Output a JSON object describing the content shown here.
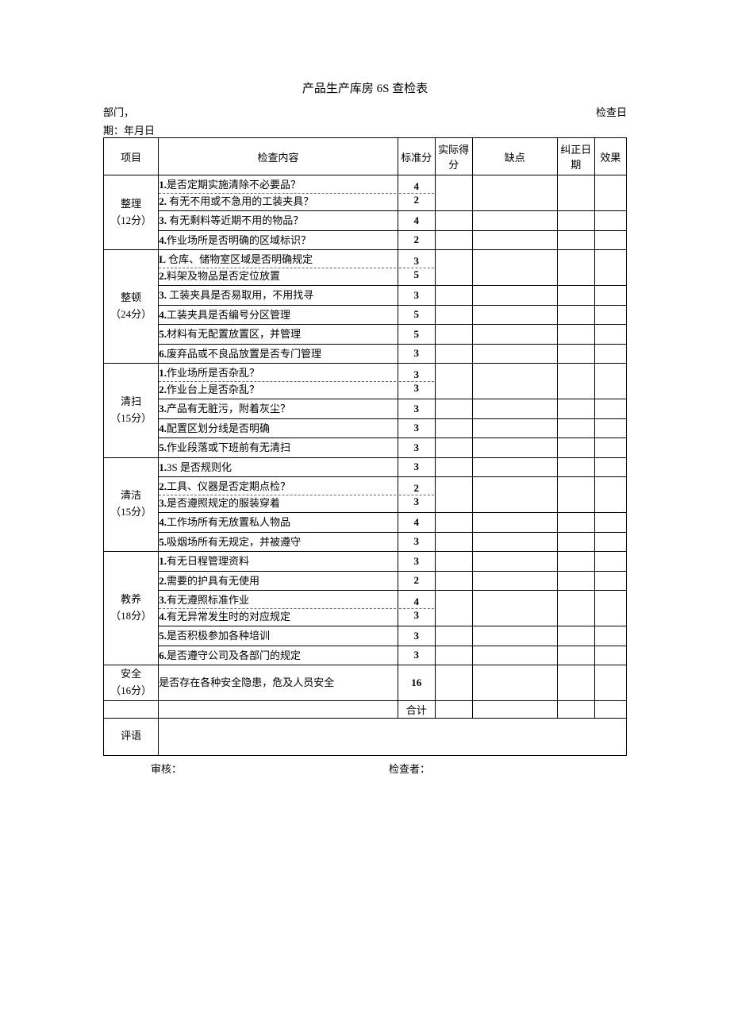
{
  "title": "产品生产库房 6S 查检表",
  "header_left": "部门，",
  "header_right": "检查日",
  "header_sub": "期：年月日",
  "columns": {
    "proj": "项目",
    "content": "检查内容",
    "std": "标准分",
    "actual": "实际得分",
    "defect": "缺点",
    "date": "纠正日期",
    "effect": "效果"
  },
  "sections": [
    {
      "name": "整理",
      "scoreLabel": "（12分）",
      "rows": [
        {
          "merged": [
            {
              "num": "1.",
              "text": "是否定期实施清除不必要品？",
              "score": "4"
            },
            {
              "num": "2.",
              "text": " 有无不用或不急用的工装夹具？",
              "score": "2"
            }
          ]
        },
        {
          "num": "3.",
          "text": " 有无剩料等近期不用的物品？",
          "score": "4"
        },
        {
          "num": "4.",
          "text": "作业场所是否明确的区域标识？",
          "score": "2"
        }
      ]
    },
    {
      "name": "整顿",
      "scoreLabel": "（24分）",
      "rows": [
        {
          "merged": [
            {
              "num": "L",
              "text": " 仓库、储物室区域是否明确规定",
              "score": "3"
            },
            {
              "num": "2.",
              "text": "料架及物品是否定位放置",
              "score": "5"
            }
          ]
        },
        {
          "num": "3.",
          "text": " 工装夹具是否易取用，不用找寻",
          "score": "3"
        },
        {
          "num": "4.",
          "text": "工装夹具是否编号分区管理",
          "score": "5"
        },
        {
          "num": "5.",
          "text": "材料有无配置放置区，并管理",
          "score": "5"
        },
        {
          "num": "6.",
          "text": "废弃品或不良品放置是否专门管理",
          "score": "3"
        }
      ]
    },
    {
      "name": "清扫",
      "scoreLabel": "（15分）",
      "rows": [
        {
          "merged": [
            {
              "num": "1.",
              "text": "作业场所是否杂乱？",
              "score": "3"
            },
            {
              "num": "2.",
              "text": "作业台上是否杂乱？",
              "score": "3"
            }
          ]
        },
        {
          "num": "3.",
          "text": "产品有无脏污，附着灰尘？",
          "score": "3"
        },
        {
          "num": "4.",
          "text": "配置区划分线是否明确",
          "score": "3"
        },
        {
          "num": "5.",
          "text": "作业段落或下班前有无清扫",
          "score": "3"
        }
      ]
    },
    {
      "name": "清洁",
      "scoreLabel": "（15分）",
      "rows": [
        {
          "num": "1.",
          "text": "3S 是否规则化",
          "score": "3"
        },
        {
          "merged": [
            {
              "num": "2.",
              "text": "工具、仪器是否定期点检？",
              "score": "2"
            },
            {
              "num": "3.",
              "text": "是否遵照规定的服装穿着",
              "score": "3"
            }
          ]
        },
        {
          "num": "4.",
          "text": "工作场所有无放置私人物品",
          "score": "4"
        },
        {
          "num": "5.",
          "text": "吸烟场所有无规定，并被遵守",
          "score": "3"
        }
      ]
    },
    {
      "name": "教养",
      "scoreLabel": "（18分）",
      "rows": [
        {
          "num": "1.",
          "text": "有无日程管理资料",
          "score": "3"
        },
        {
          "num": "2.",
          "text": "需要的护具有无使用",
          "score": "2"
        },
        {
          "merged": [
            {
              "num": "3.",
              "text": "有无遵照标准作业",
              "score": "4"
            },
            {
              "num": "4.",
              "text": "有无异常发生时的对应规定",
              "score": "3"
            }
          ]
        },
        {
          "num": "5.",
          "text": "是否积极参加各种培训",
          "score": "3"
        },
        {
          "num": "6.",
          "text": "是否遵守公司及各部门的规定",
          "score": "3"
        }
      ]
    },
    {
      "name": "安全",
      "scoreLabel": "（16分）",
      "rows": [
        {
          "num": "",
          "text": "是否存在各种安全隐患，危及人员安全",
          "score": "16"
        }
      ]
    }
  ],
  "total_label": "合计",
  "comment_label": "评语",
  "footer": {
    "reviewer": "审核：",
    "checker": "检查者："
  }
}
